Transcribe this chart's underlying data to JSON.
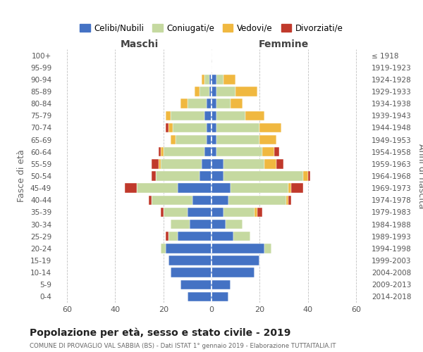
{
  "age_groups": [
    "0-4",
    "5-9",
    "10-14",
    "15-19",
    "20-24",
    "25-29",
    "30-34",
    "35-39",
    "40-44",
    "45-49",
    "50-54",
    "55-59",
    "60-64",
    "65-69",
    "70-74",
    "75-79",
    "80-84",
    "85-89",
    "90-94",
    "95-99",
    "100+"
  ],
  "birth_years": [
    "2014-2018",
    "2009-2013",
    "2004-2008",
    "1999-2003",
    "1994-1998",
    "1989-1993",
    "1984-1988",
    "1979-1983",
    "1974-1978",
    "1969-1973",
    "1964-1968",
    "1959-1963",
    "1954-1958",
    "1949-1953",
    "1944-1948",
    "1939-1943",
    "1934-1938",
    "1929-1933",
    "1924-1928",
    "1919-1923",
    "≤ 1918"
  ],
  "maschi_celibi": [
    10,
    13,
    17,
    18,
    19,
    14,
    9,
    10,
    8,
    14,
    5,
    4,
    3,
    2,
    2,
    3,
    2,
    1,
    1,
    0,
    0
  ],
  "maschi_coniugati": [
    0,
    0,
    0,
    0,
    2,
    4,
    8,
    10,
    17,
    17,
    18,
    17,
    17,
    13,
    14,
    14,
    8,
    4,
    2,
    0,
    0
  ],
  "maschi_vedovi": [
    0,
    0,
    0,
    0,
    0,
    0,
    0,
    0,
    0,
    0,
    0,
    1,
    1,
    2,
    2,
    2,
    3,
    2,
    1,
    0,
    0
  ],
  "maschi_divorziati": [
    0,
    0,
    0,
    0,
    0,
    1,
    0,
    1,
    1,
    5,
    2,
    3,
    1,
    0,
    1,
    0,
    0,
    0,
    0,
    0,
    0
  ],
  "femmine_celibi": [
    7,
    8,
    18,
    20,
    22,
    9,
    6,
    5,
    7,
    8,
    5,
    5,
    2,
    2,
    2,
    2,
    2,
    2,
    2,
    0,
    0
  ],
  "femmine_coniugati": [
    0,
    0,
    0,
    0,
    3,
    7,
    7,
    13,
    24,
    24,
    33,
    17,
    19,
    18,
    18,
    12,
    6,
    8,
    3,
    0,
    0
  ],
  "femmine_vedovi": [
    0,
    0,
    0,
    0,
    0,
    0,
    0,
    1,
    1,
    1,
    2,
    5,
    5,
    7,
    9,
    8,
    5,
    9,
    5,
    0,
    0
  ],
  "femmine_divorziati": [
    0,
    0,
    0,
    0,
    0,
    0,
    0,
    2,
    1,
    5,
    1,
    3,
    2,
    0,
    0,
    0,
    0,
    0,
    0,
    0,
    0
  ],
  "color_celibi": "#4472c4",
  "color_coniugati": "#c5d9a0",
  "color_vedovi": "#f0b840",
  "color_divorziati": "#c0392b",
  "bg_color": "#ffffff",
  "grid_color": "#bbbbbb",
  "title": "Popolazione per età, sesso e stato civile - 2019",
  "subtitle": "COMUNE DI PROVAGLIO VAL SABBIA (BS) - Dati ISTAT 1° gennaio 2019 - Elaborazione TUTTAITALIA.IT",
  "ylabel_left": "Fasce di età",
  "ylabel_right": "Anni di nascita",
  "xlabel_left": "Maschi",
  "xlabel_right": "Femmine",
  "xlim": 65,
  "legend_labels": [
    "Celibi/Nubili",
    "Coniugati/e",
    "Vedovi/e",
    "Divorziati/e"
  ]
}
